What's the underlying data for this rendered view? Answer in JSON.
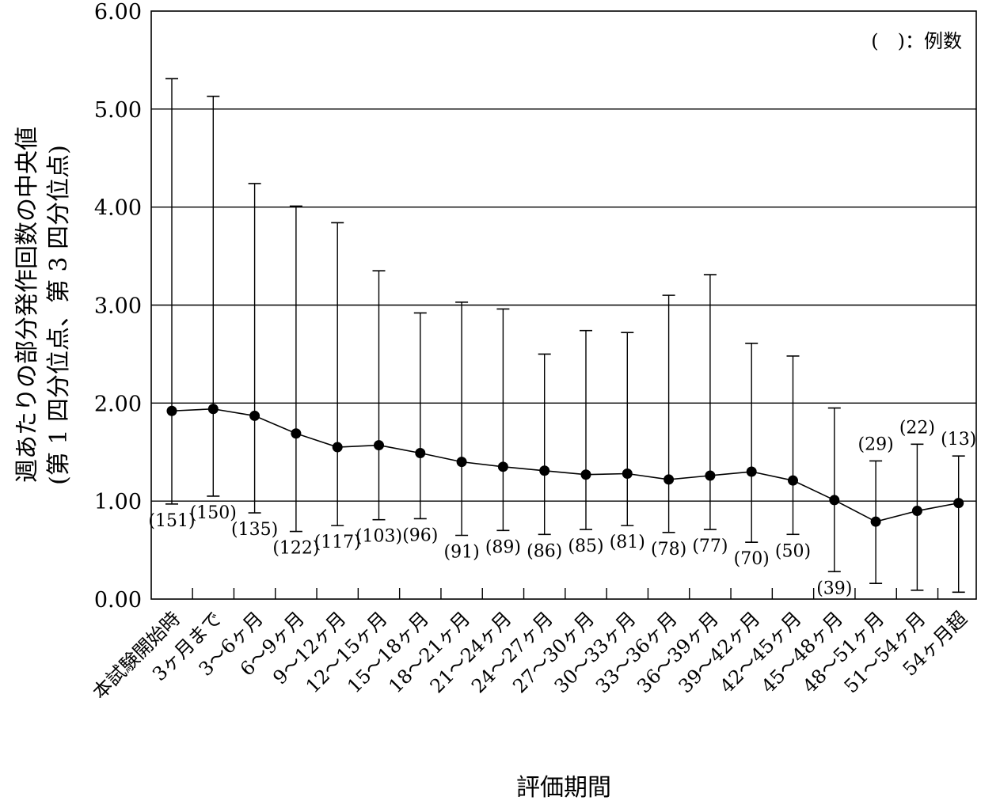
{
  "chart_data": {
    "type": "line",
    "xlabel": "評価期間",
    "ylabel_line1": "週あたりの部分発作回数の中央値",
    "ylabel_line2": "(第 1 四分位点、第 3 四分位点)",
    "note": "(　)：例数",
    "ylim": [
      0,
      6
    ],
    "y_ticks": [
      "0.00",
      "1.00",
      "2.00",
      "3.00",
      "4.00",
      "5.00",
      "6.00"
    ],
    "grid": "horizontal",
    "categories": [
      "本試験開始時",
      "3ヶ月まで",
      "3～6ヶ月",
      "6～9ヶ月",
      "9～12ヶ月",
      "12～15ヶ月",
      "15～18ヶ月",
      "18～21ヶ月",
      "21～24ヶ月",
      "24～27ヶ月",
      "27～30ヶ月",
      "30～33ヶ月",
      "33～36ヶ月",
      "36～39ヶ月",
      "39～42ヶ月",
      "42～45ヶ月",
      "45～48ヶ月",
      "48～51ヶ月",
      "51～54ヶ月",
      "54ヶ月超"
    ],
    "median": [
      1.92,
      1.94,
      1.87,
      1.69,
      1.55,
      1.57,
      1.49,
      1.4,
      1.35,
      1.31,
      1.27,
      1.28,
      1.22,
      1.26,
      1.3,
      1.21,
      1.01,
      0.79,
      0.9,
      0.98
    ],
    "q1": [
      0.97,
      1.05,
      0.88,
      0.69,
      0.75,
      0.81,
      0.82,
      0.65,
      0.7,
      0.66,
      0.71,
      0.75,
      0.68,
      0.71,
      0.58,
      0.66,
      0.28,
      0.16,
      0.09,
      0.07
    ],
    "q3": [
      5.31,
      5.13,
      4.24,
      4.01,
      3.84,
      3.35,
      2.92,
      3.03,
      2.96,
      2.5,
      2.74,
      2.72,
      3.1,
      3.31,
      2.61,
      2.48,
      1.95,
      1.41,
      1.58,
      1.46
    ],
    "counts": [
      "(151)",
      "(150)",
      "(135)",
      "(122)",
      "(117)",
      "(103)",
      "(96)",
      "(91)",
      "(89)",
      "(86)",
      "(85)",
      "(81)",
      "(78)",
      "(77)",
      "(70)",
      "(50)",
      "(39)",
      "(29)",
      "(22)",
      "(13)"
    ],
    "count_position": [
      "below",
      "below",
      "below",
      "below",
      "below",
      "below",
      "below",
      "below",
      "below",
      "below",
      "below",
      "below",
      "below",
      "below",
      "below",
      "below",
      "below",
      "above",
      "above",
      "above"
    ],
    "colors": {
      "line": "#000000",
      "grid": "#000000",
      "background": "#ffffff"
    }
  }
}
